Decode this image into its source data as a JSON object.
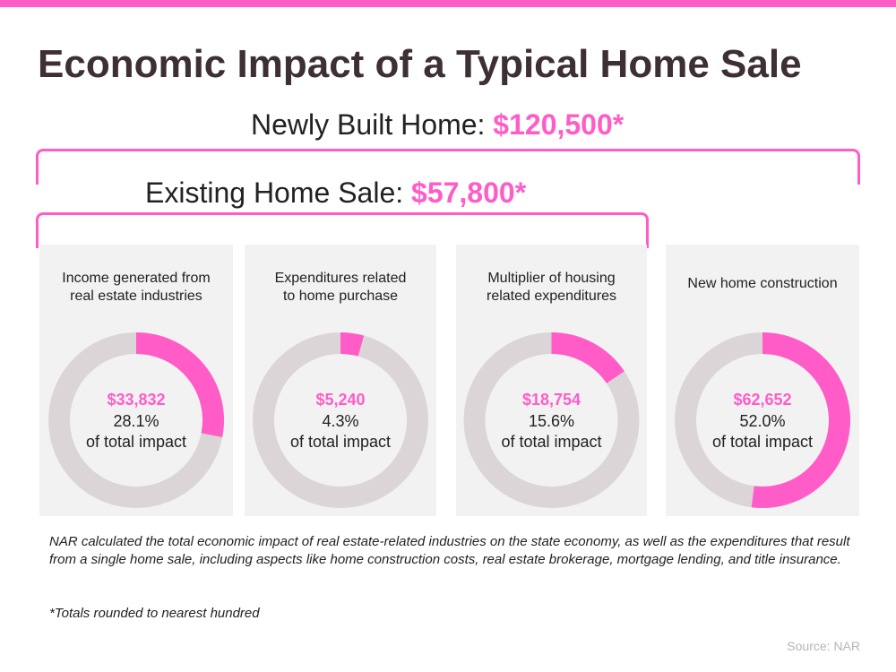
{
  "colors": {
    "accent": "#ff5cc8",
    "ring": "#dcd5d8",
    "panel_bg": "#f2f2f2",
    "title_text": "#3d2f32",
    "body_text": "#222222",
    "source_text": "#b5b5b5"
  },
  "title": "Economic Impact of a Typical Home Sale",
  "headings": {
    "new_label": "Newly Built Home: ",
    "new_value": "$120,500*",
    "existing_label": "Existing Home Sale: ",
    "existing_value": "$57,800*"
  },
  "chart_data": [
    {
      "type": "pie",
      "label": "Income generated from\nreal estate industries",
      "value": "$33,832",
      "percent": 28.1,
      "percent_label": "28.1%",
      "suffix": "of total impact"
    },
    {
      "type": "pie",
      "label": "Expenditures related\nto home purchase",
      "value": "$5,240",
      "percent": 4.3,
      "percent_label": "4.3%",
      "suffix": "of total impact"
    },
    {
      "type": "pie",
      "label": "Multiplier of housing\nrelated expenditures",
      "value": "$18,754",
      "percent": 15.6,
      "percent_label": "15.6%",
      "suffix": "of total impact"
    },
    {
      "type": "pie",
      "label": "New home construction",
      "value": "$62,652",
      "percent": 52.0,
      "percent_label": "52.0%",
      "suffix": "of total impact"
    }
  ],
  "note": "NAR calculated the total economic impact of real estate-related industries on the state economy, as well as the expenditures that result from a single home sale, including aspects like home construction costs, real estate brokerage, mortgage lending, and title insurance.",
  "footnote": "*Totals rounded to nearest hundred",
  "source": "Source: NAR"
}
